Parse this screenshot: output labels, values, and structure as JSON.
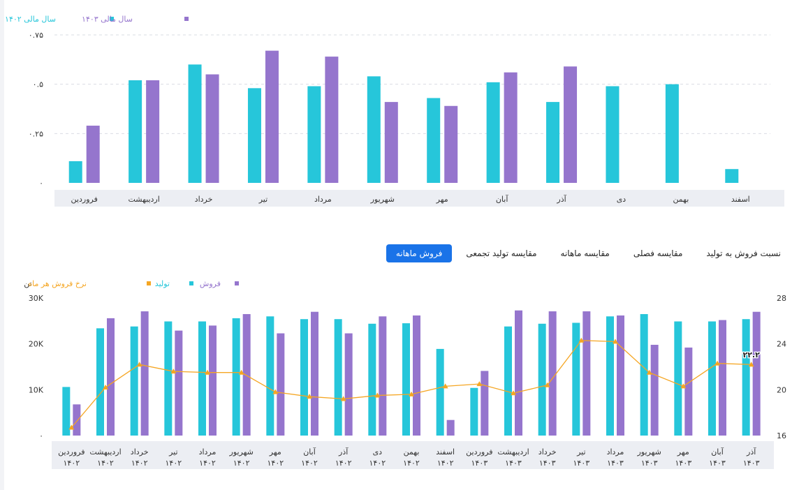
{
  "tabs": [
    {
      "label": "فروش ماهانه",
      "active": true
    },
    {
      "label": "مقایسه تولید تجمعی",
      "active": false
    },
    {
      "label": "مقایسه ماهانه",
      "active": false
    },
    {
      "label": "مقایسه فصلی",
      "active": false
    },
    {
      "label": "نسبت فروش به تولید",
      "active": false
    }
  ],
  "colors": {
    "teal": "#26c6da",
    "purple": "#9575cd",
    "orange": "#f5a623",
    "axis_band": "#eceef3"
  },
  "chart_data": [
    {
      "type": "bar",
      "title": "",
      "xlabel": "",
      "ylabel": "",
      "ylim": [
        0,
        0.75
      ],
      "yticks": [
        "۰",
        "۰.۲۵",
        "۰.۵",
        "۰.۷۵"
      ],
      "grid": true,
      "legend_position": "top-left",
      "categories": [
        "فروردین",
        "اردیبهشت",
        "خرداد",
        "تیر",
        "مرداد",
        "شهریور",
        "مهر",
        "آبان",
        "آذر",
        "دی",
        "بهمن",
        "اسفند"
      ],
      "series": [
        {
          "name": "سال مالی ۱۴۰۲",
          "color": "#26c6da",
          "values": [
            0.11,
            0.52,
            0.6,
            0.48,
            0.49,
            0.54,
            0.43,
            0.51,
            0.41,
            0.49,
            0.5,
            0.07
          ]
        },
        {
          "name": "سال مالی ۱۴۰۳",
          "color": "#9575cd",
          "values": [
            0.29,
            0.52,
            0.55,
            0.67,
            0.64,
            0.41,
            0.39,
            0.56,
            0.59,
            null,
            null,
            null
          ]
        }
      ]
    },
    {
      "type": "bar",
      "title": "",
      "ylabel": "تن",
      "ylim": [
        0,
        30000
      ],
      "yticks": [
        "۰",
        "10K",
        "20K",
        "30K"
      ],
      "y2lim": [
        16,
        28
      ],
      "y2ticks": [
        "16",
        "20",
        "24",
        "28"
      ],
      "grid": false,
      "legend_position": "top-center",
      "categories": [
        [
          "فروردین",
          "۱۴۰۲"
        ],
        [
          "اردیبهشت",
          "۱۴۰۲"
        ],
        [
          "خرداد",
          "۱۴۰۲"
        ],
        [
          "تیر",
          "۱۴۰۲"
        ],
        [
          "مرداد",
          "۱۴۰۲"
        ],
        [
          "شهریور",
          "۱۴۰۲"
        ],
        [
          "مهر",
          "۱۴۰۲"
        ],
        [
          "آبان",
          "۱۴۰۲"
        ],
        [
          "آذر",
          "۱۴۰۲"
        ],
        [
          "دی",
          "۱۴۰۲"
        ],
        [
          "بهمن",
          "۱۴۰۲"
        ],
        [
          "اسفند",
          "۱۴۰۲"
        ],
        [
          "فروردین",
          "۱۴۰۳"
        ],
        [
          "اردیبهشت",
          "۱۴۰۳"
        ],
        [
          "خرداد",
          "۱۴۰۳"
        ],
        [
          "تیر",
          "۱۴۰۳"
        ],
        [
          "مرداد",
          "۱۴۰۳"
        ],
        [
          "شهریور",
          "۱۴۰۳"
        ],
        [
          "مهر",
          "۱۴۰۳"
        ],
        [
          "آبان",
          "۱۴۰۳"
        ],
        [
          "آذر",
          "۱۴۰۳"
        ]
      ],
      "series": [
        {
          "name": "تولید",
          "color": "#26c6da",
          "values": [
            10600,
            23400,
            23800,
            24900,
            24900,
            25600,
            26000,
            25400,
            25400,
            24400,
            24500,
            18900,
            10400,
            23800,
            24400,
            24600,
            26000,
            26500,
            24900,
            24900,
            25400
          ]
        },
        {
          "name": "فروش",
          "color": "#9575cd",
          "values": [
            6800,
            25600,
            27100,
            22900,
            24000,
            26500,
            22300,
            27000,
            22300,
            26000,
            26200,
            3400,
            14100,
            27300,
            27100,
            27100,
            26200,
            19800,
            19200,
            25200,
            27000
          ]
        },
        {
          "name": "نرخ فروش هر ماه",
          "color": "#f5a623",
          "axis": "secondary",
          "values": [
            16.7,
            20.2,
            22.2,
            21.6,
            21.5,
            21.5,
            19.8,
            19.4,
            19.2,
            19.5,
            19.6,
            20.3,
            20.5,
            19.7,
            20.4,
            24.3,
            24.2,
            21.5,
            20.3,
            22.3,
            22.2
          ]
        }
      ],
      "annotations": [
        {
          "category_index": 20,
          "series": "نرخ فروش هر ماه",
          "text": "۲۲.۲"
        }
      ]
    }
  ]
}
